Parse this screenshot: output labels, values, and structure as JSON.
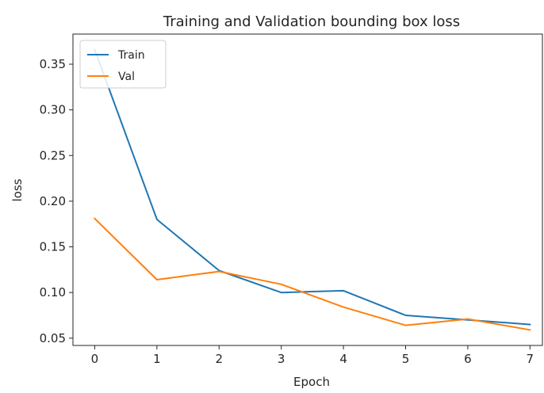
{
  "chart_data": {
    "type": "line",
    "title": "Training and Validation bounding box loss",
    "xlabel": "Epoch",
    "ylabel": "loss",
    "x": [
      0,
      1,
      2,
      3,
      4,
      5,
      6,
      7
    ],
    "xlim": [
      -0.35,
      7.2
    ],
    "ylim": [
      0.042,
      0.383
    ],
    "xticks": [
      0,
      1,
      2,
      3,
      4,
      5,
      6,
      7
    ],
    "yticks": [
      0.05,
      0.1,
      0.15,
      0.2,
      0.25,
      0.3,
      0.35
    ],
    "ytick_labels": [
      "0.05",
      "0.10",
      "0.15",
      "0.20",
      "0.25",
      "0.30",
      "0.35"
    ],
    "grid": false,
    "legend_position": "upper-left",
    "series": [
      {
        "name": "Train",
        "color": "#1f77b4",
        "values": [
          0.366,
          0.18,
          0.124,
          0.1,
          0.102,
          0.075,
          0.07,
          0.065
        ]
      },
      {
        "name": "Val",
        "color": "#ff7f0e",
        "values": [
          0.181,
          0.114,
          0.123,
          0.109,
          0.084,
          0.064,
          0.071,
          0.059
        ]
      }
    ]
  }
}
